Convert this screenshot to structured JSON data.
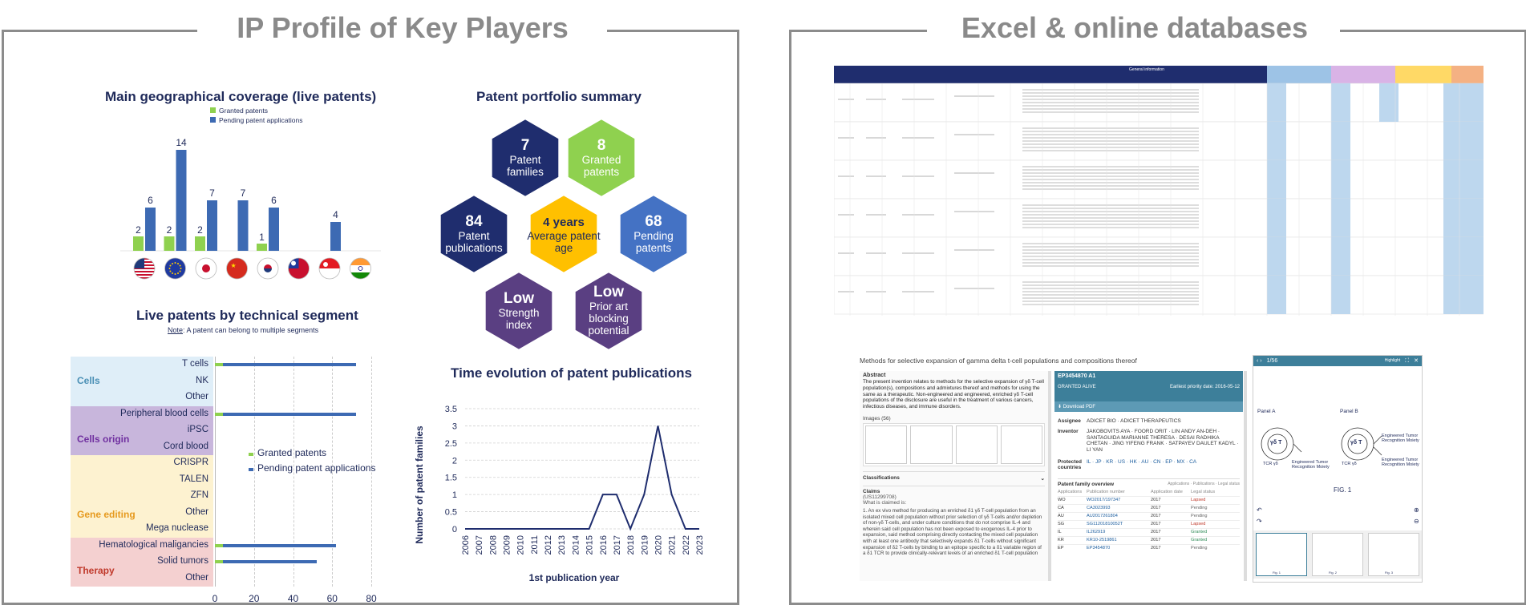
{
  "left_panel": {
    "title": "IP Profile of Key Players",
    "geo": {
      "title": "Main geographical coverage (live patents)",
      "legend": [
        "Granted patents",
        "Pending patent applications"
      ],
      "flags": [
        "us-flag-icon",
        "eu-flag-icon",
        "jp-flag-icon",
        "cn-flag-icon",
        "kr-flag-icon",
        "tw-flag-icon",
        "sg-flag-icon",
        "in-flag-icon"
      ]
    },
    "portfolio": {
      "title": "Patent portfolio summary",
      "hexes": [
        {
          "big": "7",
          "small": "Patent families",
          "color": "#1f2d6e"
        },
        {
          "big": "8",
          "small": "Granted patents",
          "color": "#8fd14f"
        },
        {
          "big": "84",
          "small": "Patent publications",
          "color": "#1f2d6e"
        },
        {
          "big": "4 years",
          "small": "Average patent age",
          "color": "#ffc000"
        },
        {
          "big": "68",
          "small": "Pending patents",
          "color": "#4472c4"
        },
        {
          "big": "Low",
          "small": "Strength index",
          "color": "#5a3f82"
        },
        {
          "big": "Low",
          "small": "Prior art blocking potential",
          "color": "#5a3f82"
        }
      ]
    },
    "segments": {
      "title": "Live patents by technical segment",
      "note_prefix": "Note",
      "note_text": ": A patent can belong to multiple segments",
      "legend": [
        "Granted patents",
        "Pending patent applications"
      ],
      "groups": [
        {
          "name": "Cells",
          "color": "#dfeef8",
          "text_color": "#4a8fb5"
        },
        {
          "name": "Cells origin",
          "color": "#c8b6dc",
          "text_color": "#7030a0"
        },
        {
          "name": "Gene editing",
          "color": "#fdf2d0",
          "text_color": "#e69a1e"
        },
        {
          "name": "Therapy",
          "color": "#f4d0d0",
          "text_color": "#c0392b"
        }
      ]
    },
    "time": {
      "title": "Time evolution of patent publications"
    }
  },
  "right_panel": {
    "title": "Excel & online databases",
    "excel_header": "General information",
    "db_screen": {
      "doc_title": "Methods for selective expansion of gamma delta t-cell populations and compositions thereof",
      "abstract_label": "Abstract",
      "abstract_text": "The present invention relates to methods for the selective expansion of γδ T-cell population(s), compositions and admixtures thereof and methods for using the same as a therapeutic. Non-engineered and engineered, enriched γδ T-cell populations of the disclosure are useful in the treatment of various cancers, infectious diseases, and immune disorders.",
      "images_label": "Images (56)",
      "classifications_label": "Classifications",
      "claims_label": "Claims",
      "claims_id": "(US11299708)",
      "claims_what": "What is claimed is:",
      "claims_text": "1. An ex vivo method for producing an enriched δ1 γδ T-cell population from an isolated mixed cell population without prior selection of γδ T-cells and/or depletion of non-γδ T-cells, and under culture conditions that do not comprise IL-4 and wherein said cell population has not been exposed to exogenous IL-4 prior to expansion, said method comprising directly contacting the mixed cell population with at least one antibody that selectively expands δ1 T-cells without significant expansion of δ2 T-cells by binding to an epitope specific to a δ1 variable region of a δ1 TCR to provide clinically-relevant levels of an enriched δ1 T-cell population",
      "patent_no": "EP3454870 A1",
      "status": "GRANTED ALIVE",
      "priority": "Earliest priority date: 2016-05-12",
      "download": "Download PDF",
      "assignee_label": "Assignee",
      "assignee": "ADICET BIO · ADICET THERAPEUTICS",
      "inventor_label": "Inventor",
      "inventor": "JAKOBOVITS AYA · FOORD ORIT · LIN ANDY AN-DEH · SANTAGUIDA MARIANNE THERESA · DESAI RADHIKA CHETAN · JING YIFENG FRANK · SATPAYEV DAULET KADYL · LI YAN",
      "protected_label": "Protected countries",
      "protected": "IL · JP · KR · US · HK · AU · CN · EP · MX · CA",
      "family_label": "Patent family overview",
      "family_tabs": "Applications · Publications · Legal status",
      "family_cols": [
        "Applications",
        "Publication number",
        "Application date",
        "Legal status"
      ],
      "family_rows": [
        {
          "cc": "WO",
          "pub": "WO2017/197347",
          "date": "2017",
          "status": "Lapsed"
        },
        {
          "cc": "CA",
          "pub": "CA3023993",
          "date": "2017",
          "status": "Pending"
        },
        {
          "cc": "AU",
          "pub": "AU2017261804",
          "date": "2017",
          "status": "Pending"
        },
        {
          "cc": "SG",
          "pub": "SG11201810052T",
          "date": "2017",
          "status": "Lapsed"
        },
        {
          "cc": "IL",
          "pub": "IL262919",
          "date": "2017",
          "status": "Granted"
        },
        {
          "cc": "KR",
          "pub": "KR10-2519861",
          "date": "2017",
          "status": "Granted"
        },
        {
          "cc": "EP",
          "pub": "EP3454870",
          "date": "2017",
          "status": "Pending"
        }
      ],
      "viewer_page": "1/56",
      "viewer_highlight": "Highlight",
      "panel_a": "Panel A",
      "panel_b": "Panel B",
      "cell_a": "γδ T",
      "cell_b": "γδ T",
      "tcr": "TCR γδ",
      "etr_a": "Engineered Tumor Recognition Moiety",
      "etr_b1": "Engineered Tumor Recognition Moiety",
      "etr_b2": "Engineered Tumor Recognition Moiety",
      "fig_label": "FIG. 1",
      "thumb_labels": [
        "Fig. 1",
        "Fig. 2",
        "Fig. 3"
      ]
    }
  },
  "chart_data": [
    {
      "type": "bar",
      "title": "Main geographical coverage (live patents)",
      "categories": [
        "US",
        "EU",
        "JP",
        "CN",
        "KR",
        "TW",
        "SG",
        "IN"
      ],
      "series": [
        {
          "name": "Granted patents",
          "values": [
            2,
            2,
            2,
            0,
            1,
            0,
            0,
            0
          ],
          "color": "#8fd14f"
        },
        {
          "name": "Pending patent applications",
          "values": [
            6,
            14,
            7,
            7,
            6,
            0,
            4,
            0
          ],
          "color": "#3d6ab3"
        }
      ],
      "labels": [
        [
          "2",
          "6"
        ],
        [
          "2",
          "14"
        ],
        [
          "2",
          "7"
        ],
        [
          "",
          "7"
        ],
        [
          "1",
          "6"
        ],
        [
          "",
          ""
        ],
        [
          "",
          "4"
        ],
        [
          "",
          ""
        ]
      ],
      "ylim": [
        0,
        14
      ]
    },
    {
      "type": "bar",
      "title": "Live patents by technical segment",
      "orientation": "horizontal",
      "categories": [
        "T cells",
        "NK",
        "Other",
        "Peripheral blood cells",
        "iPSC",
        "Cord blood",
        "CRISPR",
        "TALEN",
        "ZFN",
        "Other",
        "Mega nuclease",
        "Hematological maligancies",
        "Solid tumors",
        "Other"
      ],
      "group_index": [
        0,
        0,
        0,
        1,
        1,
        1,
        2,
        2,
        2,
        2,
        2,
        3,
        3,
        3
      ],
      "series": [
        {
          "name": "Granted patents",
          "values": [
            7,
            0,
            0,
            7,
            0,
            0,
            0,
            0,
            0,
            0,
            0,
            7,
            7,
            0
          ],
          "color": "#8fd14f"
        },
        {
          "name": "Pending patent applications",
          "values": [
            68,
            0,
            0,
            68,
            0,
            0,
            0,
            0,
            0,
            0,
            0,
            58,
            48,
            0
          ],
          "color": "#3d6ab3"
        }
      ],
      "xticks": [
        0,
        20,
        40,
        60,
        80
      ],
      "xlim": [
        0,
        80
      ]
    },
    {
      "type": "line",
      "title": "Time evolution of patent publications",
      "xlabel": "1st publication year",
      "ylabel": "Number of patent families",
      "x": [
        "2006",
        "2007",
        "2008",
        "2009",
        "2010",
        "2011",
        "2012",
        "2013",
        "2014",
        "2015",
        "2016",
        "2017",
        "2018",
        "2019",
        "2020",
        "2021",
        "2022",
        "2023"
      ],
      "series": [
        {
          "name": "",
          "values": [
            0,
            0,
            0,
            0,
            0,
            0,
            0,
            0,
            0,
            0,
            1,
            1,
            0,
            1,
            3,
            1,
            0,
            0
          ],
          "color": "#1f2d6e"
        }
      ],
      "yticks": [
        "0",
        "0.5",
        "1",
        "1.5",
        "2",
        "2.5",
        "3",
        "3.5"
      ],
      "ylim": [
        0,
        3.5
      ]
    }
  ]
}
